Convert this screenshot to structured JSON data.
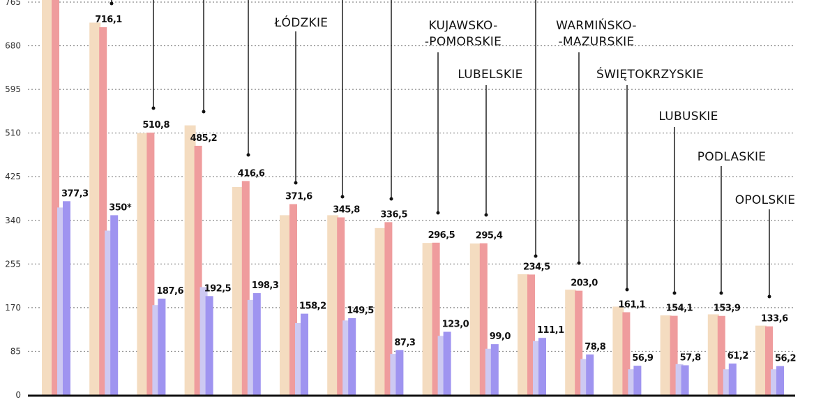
{
  "chart_data": {
    "type": "bar",
    "title": "",
    "xlabel": "",
    "ylabel": "",
    "ylim": [
      0,
      780
    ],
    "yticks": [
      0,
      85,
      170,
      255,
      340,
      425,
      510,
      595,
      680,
      765
    ],
    "grid": true,
    "categories": [
      "",
      "",
      "",
      "",
      "",
      "ŁÓDZKIE",
      "",
      "",
      "KUJAWSKO-\n-POMORSKIE",
      "LUBELSKIE",
      "",
      "WARMIŃSKO-\n-MAZURSKIE",
      "ŚWIĘTOKRZYSKIE",
      "LUBUSKIE",
      "PODLASKIE",
      "OPOLSKIE"
    ],
    "series": [
      {
        "values": [
          780,
          725,
          510,
          525,
          405,
          350,
          350,
          325,
          296,
          295,
          235,
          205,
          172,
          155,
          157,
          135
        ],
        "color": "#f4dcc0"
      },
      {
        "values": [
          780,
          716.1,
          510.8,
          485.2,
          416.6,
          371.6,
          345.8,
          336.5,
          296.5,
          295.4,
          234.5,
          203.0,
          161.1,
          154.1,
          153.9,
          133.6
        ],
        "color": "#ef9c9d"
      },
      {
        "values": [
          365,
          320,
          175,
          210,
          185,
          140,
          145,
          80,
          115,
          90,
          105,
          70,
          50,
          60,
          50,
          50
        ],
        "color": "#cdc9f2"
      },
      {
        "values": [
          377.3,
          350,
          187.6,
          192.5,
          198.3,
          158.2,
          149.5,
          87.3,
          123.0,
          99.0,
          111.1,
          78.8,
          56.9,
          57.8,
          61.2,
          56.2
        ],
        "color": "#9f94f0"
      }
    ],
    "data_labels": {
      "series_2": [
        "",
        "716,1",
        "510,8",
        "485,2",
        "416,6",
        "371,6",
        "345,8",
        "336,5",
        "296,5",
        "295,4",
        "234,5",
        "203,0",
        "161,1",
        "154,1",
        "153,9",
        "133,6"
      ],
      "series_4": [
        "377,3",
        "350*",
        "187,6",
        "192,5",
        "198,3",
        "158,2",
        "149,5",
        "87,3",
        "123,0",
        "99,0",
        "111,1",
        "78,8",
        "56,9",
        "57,8",
        "61,2",
        "56,2"
      ]
    }
  }
}
